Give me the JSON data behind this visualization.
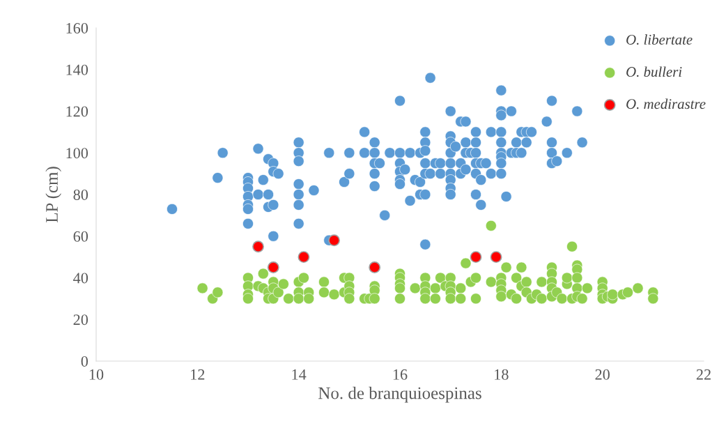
{
  "chart_data": {
    "type": "scatter",
    "xlabel": "No. de branquioespinas",
    "ylabel": "LP (cm)",
    "xlim": [
      10,
      22
    ],
    "xticks": [
      10,
      12,
      14,
      16,
      18,
      20,
      22
    ],
    "ylim": [
      0,
      160
    ],
    "yticks": [
      0,
      20,
      40,
      60,
      80,
      100,
      120,
      140,
      160
    ],
    "grid": false,
    "legend": "top right",
    "marker": "circle",
    "series": [
      {
        "name": "O. libertate",
        "color": "#5b9bd5",
        "x": [
          11.5,
          12.4,
          12.5,
          13,
          13,
          13,
          13,
          13,
          13,
          13,
          13.2,
          13.2,
          13.3,
          13.4,
          13.4,
          13.4,
          13.5,
          13.5,
          13.5,
          13.5,
          13.6,
          14,
          14,
          14,
          14,
          14,
          14,
          14,
          14.3,
          14.6,
          14.6,
          14.9,
          15,
          15,
          15.3,
          15.3,
          15.5,
          15.5,
          15.5,
          15.5,
          15.5,
          15.6,
          15.7,
          15.8,
          16,
          16,
          16,
          16,
          16,
          16,
          16.1,
          16.2,
          16.2,
          16.3,
          16.4,
          16.4,
          16.4,
          16.5,
          16.5,
          16.5,
          16.5,
          16.5,
          16.5,
          16.5,
          16.6,
          16.6,
          16.7,
          16.8,
          16.8,
          17,
          17,
          17,
          17,
          17,
          17,
          17,
          17,
          17,
          17.1,
          17.2,
          17.2,
          17.2,
          17.3,
          17.3,
          17.3,
          17.3,
          17.4,
          17.5,
          17.5,
          17.5,
          17.5,
          17.5,
          17.5,
          17.6,
          17.6,
          17.6,
          17.7,
          17.8,
          17.8,
          18,
          18,
          18,
          18,
          18,
          18,
          18,
          18,
          18,
          18.1,
          18.2,
          18.2,
          18.3,
          18.3,
          18.4,
          18.4,
          18.5,
          18.5,
          18.6,
          18.9,
          19,
          19,
          19,
          19,
          19.1,
          19.3,
          19.5,
          19.6
        ],
        "values": [
          73,
          88,
          100,
          88,
          86,
          83,
          79,
          75,
          73,
          66,
          102,
          80,
          87,
          97,
          80,
          74,
          95,
          91,
          75,
          60,
          90,
          105,
          100,
          96,
          85,
          80,
          75,
          66,
          82,
          100,
          58,
          86,
          100,
          90,
          110,
          100,
          105,
          100,
          95,
          90,
          84,
          95,
          70,
          100,
          125,
          100,
          95,
          91,
          87,
          85,
          92,
          100,
          77,
          87,
          100,
          86,
          80,
          110,
          105,
          101,
          95,
          90,
          80,
          56,
          136,
          90,
          95,
          95,
          90,
          120,
          108,
          105,
          100,
          95,
          90,
          87,
          83,
          80,
          103,
          95,
          90,
          115,
          115,
          105,
          100,
          92,
          100,
          110,
          105,
          100,
          95,
          90,
          80,
          95,
          87,
          75,
          95,
          110,
          90,
          130,
          120,
          118,
          110,
          105,
          100,
          98,
          95,
          90,
          79,
          120,
          100,
          105,
          100,
          110,
          100,
          110,
          105,
          110,
          115,
          125,
          105,
          100,
          95,
          96,
          100,
          120,
          105
        ]
      },
      {
        "name": "O. bulleri",
        "color": "#92d050",
        "x": [
          12.1,
          12.3,
          12.4,
          13,
          13,
          13,
          13,
          13.2,
          13.3,
          13.3,
          13.4,
          13.4,
          13.5,
          13.5,
          13.5,
          13.6,
          13.7,
          13.8,
          14,
          14,
          14,
          14.1,
          14.2,
          14.2,
          14.5,
          14.5,
          14.7,
          14.9,
          14.9,
          15,
          15,
          15,
          15,
          15.3,
          15.4,
          15.5,
          15.5,
          15.5,
          16,
          16,
          16,
          16,
          16,
          16.3,
          16.5,
          16.5,
          16.5,
          16.5,
          16.7,
          16.7,
          16.8,
          16.9,
          17,
          17,
          17,
          17,
          17.2,
          17.2,
          17.3,
          17.4,
          17.5,
          17.5,
          17.8,
          17.8,
          18,
          18,
          18,
          18,
          18.1,
          18.2,
          18.3,
          18.3,
          18.4,
          18.4,
          18.5,
          18.5,
          18.6,
          18.7,
          18.8,
          18.8,
          19,
          19,
          19,
          19,
          19,
          19.1,
          19.2,
          19.3,
          19.3,
          19.4,
          19.4,
          19.5,
          19.5,
          19.5,
          19.5,
          19.5,
          19.6,
          19.7,
          20,
          20,
          20,
          20,
          20.1,
          20.2,
          20.2,
          20.4,
          20.5,
          20.7,
          21,
          21
        ],
        "values": [
          35,
          30,
          33,
          40,
          36,
          32,
          30,
          36,
          42,
          35,
          33,
          30,
          38,
          35,
          30,
          33,
          37,
          30,
          38,
          33,
          30,
          40,
          33,
          30,
          38,
          33,
          32,
          40,
          33,
          40,
          36,
          33,
          30,
          30,
          30,
          36,
          34,
          30,
          42,
          40,
          37,
          35,
          30,
          35,
          40,
          36,
          33,
          30,
          35,
          30,
          40,
          36,
          40,
          36,
          33,
          30,
          35,
          30,
          47,
          38,
          40,
          30,
          65,
          38,
          40,
          37,
          34,
          31,
          45,
          32,
          40,
          30,
          36,
          45,
          38,
          33,
          30,
          32,
          38,
          30,
          45,
          42,
          38,
          35,
          31,
          33,
          30,
          37,
          40,
          55,
          30,
          46,
          44,
          40,
          35,
          31,
          30,
          35,
          38,
          35,
          32,
          30,
          31,
          30,
          32,
          32,
          33,
          35,
          33,
          30
        ]
      },
      {
        "name": "O. medirastre",
        "color": "#ff0000",
        "x": [
          13.2,
          13.5,
          14.1,
          14.7,
          15.5,
          17.5,
          17.9
        ],
        "values": [
          55,
          45,
          50,
          58,
          45,
          50,
          50
        ]
      }
    ]
  }
}
